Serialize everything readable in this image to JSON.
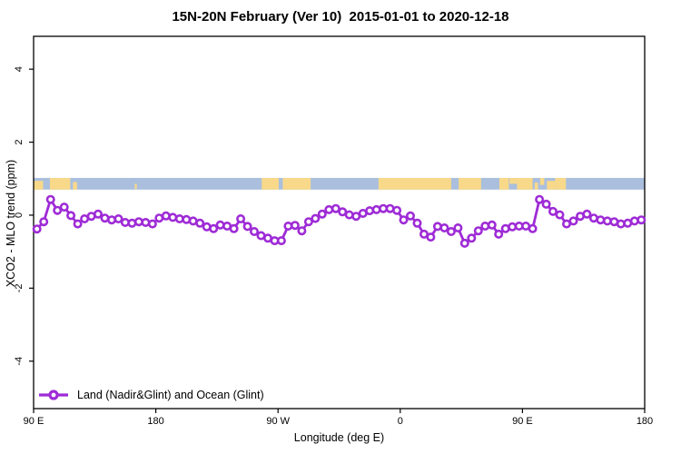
{
  "title": "15N-20N February (Ver 10)  2015-01-01 to 2020-12-18",
  "legend": {
    "label": "Land (Nadir&Glint) and Ocean (Glint)"
  },
  "colors": {
    "series": "#9E2BD6",
    "ocean_band": "#AABFDE",
    "land_band": "#F8D98A",
    "frame": "#000000"
  },
  "chart_data": {
    "type": "line",
    "title": "15N-20N February (Ver 10)  2015-01-01 to 2020-12-18",
    "xlabel": "Longitude (deg E)",
    "ylabel": "XCO2 - MLO trend (ppm)",
    "xlim": [
      90,
      540
    ],
    "ylim": [
      -5.3,
      4.9
    ],
    "grid": false,
    "legend_position": "bottom-left",
    "x_ticks": [
      {
        "value": 90,
        "label": "90 E"
      },
      {
        "value": 180,
        "label": "180"
      },
      {
        "value": 270,
        "label": "90 W"
      },
      {
        "value": 360,
        "label": "0"
      },
      {
        "value": 450,
        "label": "90 E"
      },
      {
        "value": 540,
        "label": "180"
      }
    ],
    "y_ticks": [
      {
        "value": -4,
        "label": "-4"
      },
      {
        "value": -2,
        "label": "-2"
      },
      {
        "value": 0,
        "label": "0"
      },
      {
        "value": 2,
        "label": "2"
      },
      {
        "value": 4,
        "label": "4"
      }
    ],
    "map_band": {
      "description": "land/ocean strip for 15N-20N",
      "y0": 0.7,
      "y1": 1.02,
      "land_segments": [
        {
          "x0": 90,
          "x1": 97,
          "t": 0.25,
          "b": 1
        },
        {
          "x0": 102,
          "x1": 117,
          "t": 0,
          "b": 1
        },
        {
          "x0": 119,
          "x1": 122,
          "t": 0.35,
          "b": 1
        },
        {
          "x0": 164.5,
          "x1": 166,
          "t": 0.5,
          "b": 0.95
        },
        {
          "x0": 258,
          "x1": 270.5,
          "t": 0,
          "b": 1
        },
        {
          "x0": 273.5,
          "x1": 294,
          "t": 0,
          "b": 1
        },
        {
          "x0": 344,
          "x1": 397.5,
          "t": 0,
          "b": 1
        },
        {
          "x0": 403,
          "x1": 419.5,
          "t": 0,
          "b": 1
        },
        {
          "x0": 433,
          "x1": 440,
          "t": 0,
          "b": 1
        },
        {
          "x0": 440.5,
          "x1": 446,
          "t": 0,
          "b": 0.5
        },
        {
          "x0": 446,
          "x1": 457.5,
          "t": 0,
          "b": 1
        },
        {
          "x0": 459,
          "x1": 461.5,
          "t": 0.4,
          "b": 1
        },
        {
          "x0": 463,
          "x1": 466,
          "t": 0,
          "b": 0.6
        },
        {
          "x0": 468,
          "x1": 474,
          "t": 0.25,
          "b": 1
        },
        {
          "x0": 474,
          "x1": 482,
          "t": 0,
          "b": 1
        }
      ]
    },
    "series": [
      {
        "name": "Land (Nadir&Glint) and Ocean (Glint)",
        "marker": "open-circle",
        "x": [
          92.5,
          97.5,
          102.5,
          107.5,
          112.5,
          117.5,
          122.5,
          127.5,
          132.5,
          137.5,
          142.5,
          147.5,
          152.5,
          157.5,
          162.5,
          167.5,
          172.5,
          177.5,
          182.5,
          187.5,
          192.5,
          197.5,
          202.5,
          207.5,
          212.5,
          217.5,
          222.5,
          227.5,
          232.5,
          237.5,
          242.5,
          247.5,
          252.5,
          257.5,
          262.5,
          267.5,
          272.5,
          277.5,
          282.5,
          287.5,
          292.5,
          297.5,
          302.5,
          307.5,
          312.5,
          317.5,
          322.5,
          327.5,
          332.5,
          337.5,
          342.5,
          347.5,
          352.5,
          357.5,
          362.5,
          367.5,
          372.5,
          377.5,
          382.5,
          387.5,
          392.5,
          397.5,
          402.5,
          407.5,
          412.5,
          417.5,
          422.5,
          427.5,
          432.5,
          437.5,
          442.5,
          447.5,
          452.5,
          457.5,
          462.5,
          467.5,
          472.5,
          477.5,
          482.5,
          487.5,
          492.5,
          497.5,
          502.5,
          507.5,
          512.5,
          517.5,
          522.5,
          527.5,
          532.5,
          537.5
        ],
        "y": [
          -0.38,
          -0.18,
          0.43,
          0.13,
          0.22,
          -0.01,
          -0.24,
          -0.1,
          -0.03,
          0.03,
          -0.08,
          -0.13,
          -0.1,
          -0.2,
          -0.22,
          -0.18,
          -0.2,
          -0.24,
          -0.08,
          -0.02,
          -0.06,
          -0.1,
          -0.12,
          -0.16,
          -0.22,
          -0.32,
          -0.37,
          -0.27,
          -0.3,
          -0.37,
          -0.1,
          -0.31,
          -0.45,
          -0.56,
          -0.63,
          -0.7,
          -0.7,
          -0.3,
          -0.28,
          -0.43,
          -0.18,
          -0.09,
          0.03,
          0.15,
          0.18,
          0.09,
          0.01,
          -0.03,
          0.05,
          0.12,
          0.15,
          0.18,
          0.18,
          0.13,
          -0.13,
          -0.02,
          -0.22,
          -0.52,
          -0.6,
          -0.31,
          -0.35,
          -0.45,
          -0.35,
          -0.77,
          -0.63,
          -0.43,
          -0.3,
          -0.27,
          -0.52,
          -0.37,
          -0.32,
          -0.3,
          -0.3,
          -0.37,
          0.43,
          0.3,
          0.1,
          0.01,
          -0.24,
          -0.16,
          -0.03,
          0.03,
          -0.08,
          -0.13,
          -0.16,
          -0.18,
          -0.24,
          -0.22,
          -0.16,
          -0.13
        ]
      }
    ]
  }
}
